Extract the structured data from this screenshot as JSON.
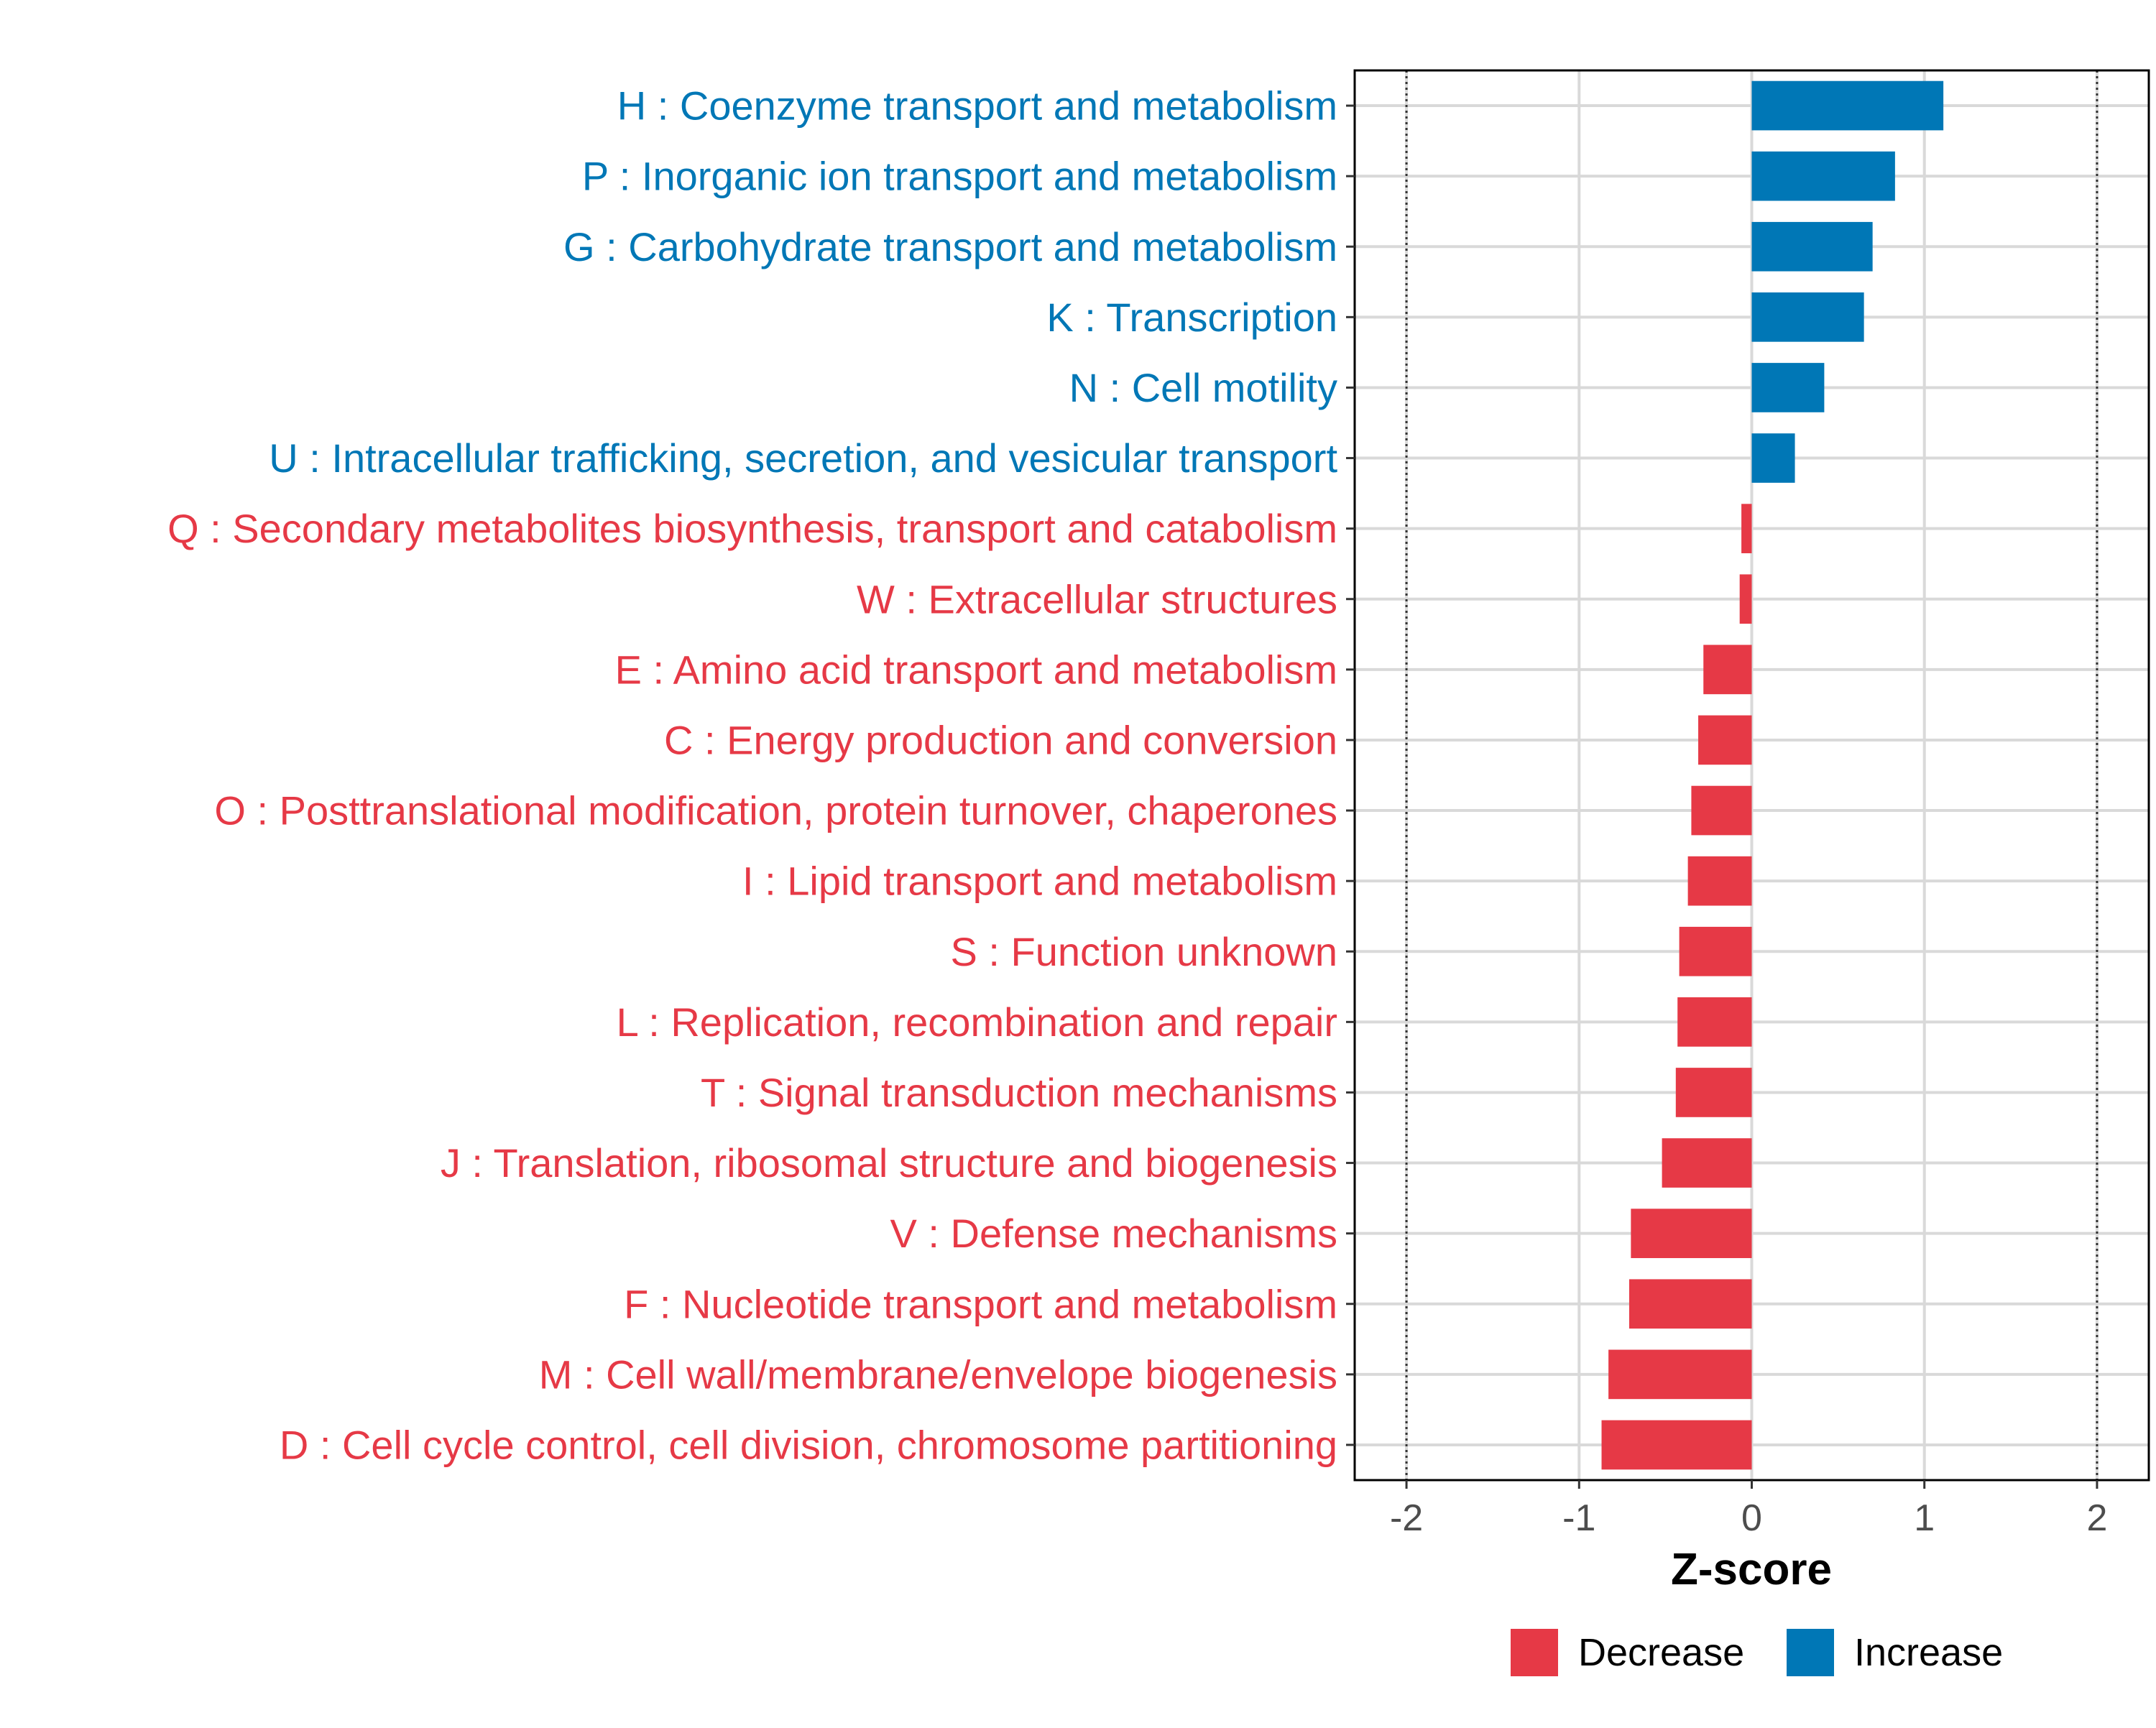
{
  "chart_data": {
    "type": "bar",
    "orientation": "horizontal",
    "title": "",
    "xlabel": "Z-score",
    "ylabel": "",
    "xlim": [
      -2.3,
      2.3
    ],
    "x_ticks": [
      -2,
      -1,
      0,
      1,
      2
    ],
    "x_tick_labels": [
      "-2",
      "-1",
      "0",
      "1",
      "2"
    ],
    "reference_lines": [
      -2,
      2
    ],
    "grid": true,
    "categories": [
      "H : Coenzyme transport and metabolism",
      "P : Inorganic ion transport and metabolism",
      "G : Carbohydrate transport and metabolism",
      "K : Transcription",
      "N : Cell motility",
      "U : Intracellular trafficking, secretion, and vesicular transport",
      "Q : Secondary metabolites biosynthesis, transport and catabolism",
      "W : Extracellular structures",
      "E : Amino acid transport and metabolism",
      "C : Energy production and conversion",
      "O : Posttranslational modification, protein turnover, chaperones",
      "I : Lipid transport and metabolism",
      "S : Function unknown",
      "L : Replication, recombination and repair",
      "T : Signal transduction mechanisms",
      "J : Translation, ribosomal structure and biogenesis",
      "V : Defense mechanisms",
      "F : Nucleotide transport and metabolism",
      "M : Cell wall/membrane/envelope biogenesis",
      "D : Cell cycle control, cell division, chromosome partitioning"
    ],
    "values": [
      1.11,
      0.83,
      0.7,
      0.65,
      0.42,
      0.25,
      -0.06,
      -0.07,
      -0.28,
      -0.31,
      -0.35,
      -0.37,
      -0.42,
      -0.43,
      -0.44,
      -0.52,
      -0.7,
      -0.71,
      -0.83,
      -0.87
    ],
    "groups": [
      "Increase",
      "Increase",
      "Increase",
      "Increase",
      "Increase",
      "Increase",
      "Decrease",
      "Decrease",
      "Decrease",
      "Decrease",
      "Decrease",
      "Decrease",
      "Decrease",
      "Decrease",
      "Decrease",
      "Decrease",
      "Decrease",
      "Decrease",
      "Decrease",
      "Decrease"
    ],
    "legend": {
      "position": "bottom",
      "entries": [
        {
          "label": "Decrease",
          "color": "#E63946"
        },
        {
          "label": "Increase",
          "color": "#0077B6"
        }
      ]
    },
    "colors": {
      "Decrease": "#E63946",
      "Increase": "#0077B6"
    }
  }
}
